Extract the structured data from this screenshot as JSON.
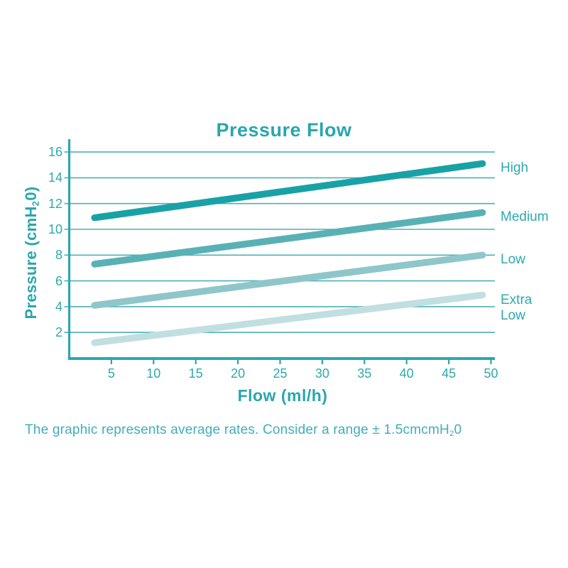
{
  "page": {
    "background": "#ffffff"
  },
  "chart": {
    "title": "Pressure Flow",
    "xlabel": "Flow (ml/h)",
    "ylabel_parts": {
      "pre": "Pressure (cmH",
      "sub": "2",
      "post": "0)"
    }
  },
  "footer": {
    "pre": "The graphic represents average rates. Consider a range ± 1.5cmcmH",
    "sub": "2",
    "post": "0"
  },
  "colors": {
    "accent": "#2aa6ac",
    "axis": "#2ba8ad",
    "grid": "#4db0b6",
    "tick_text": "#2fa9ae",
    "footer_text": "#41aeb9",
    "series_high": "#18a2a6",
    "series_medium": "#58b1b5",
    "series_low": "#8fc6ca",
    "series_extra_low": "#c1dfe1"
  },
  "chart_data": {
    "type": "line",
    "title": "Pressure Flow",
    "xlabel": "Flow (ml/h)",
    "ylabel": "Pressure (cmH20)",
    "x_ticks": [
      5,
      10,
      15,
      20,
      25,
      30,
      35,
      40,
      45,
      50
    ],
    "y_ticks": [
      2,
      4,
      6,
      8,
      10,
      12,
      14,
      16
    ],
    "xlim": [
      0,
      50.5
    ],
    "ylim": [
      0,
      17
    ],
    "grid": "horizontal gridlines at every y tick",
    "legend_position": "labels at right end of each line",
    "series": [
      {
        "name": "High",
        "x": [
          3,
          49
        ],
        "y": [
          10.9,
          15.1
        ],
        "color": "#18a2a6"
      },
      {
        "name": "Medium",
        "x": [
          3,
          49
        ],
        "y": [
          7.3,
          11.3
        ],
        "color": "#58b1b5"
      },
      {
        "name": "Low",
        "x": [
          3,
          49
        ],
        "y": [
          4.1,
          8.0
        ],
        "color": "#8fc6ca"
      },
      {
        "name": "Extra Low",
        "x": [
          3,
          49
        ],
        "y": [
          1.2,
          4.9
        ],
        "color": "#c1dfe1"
      }
    ]
  }
}
